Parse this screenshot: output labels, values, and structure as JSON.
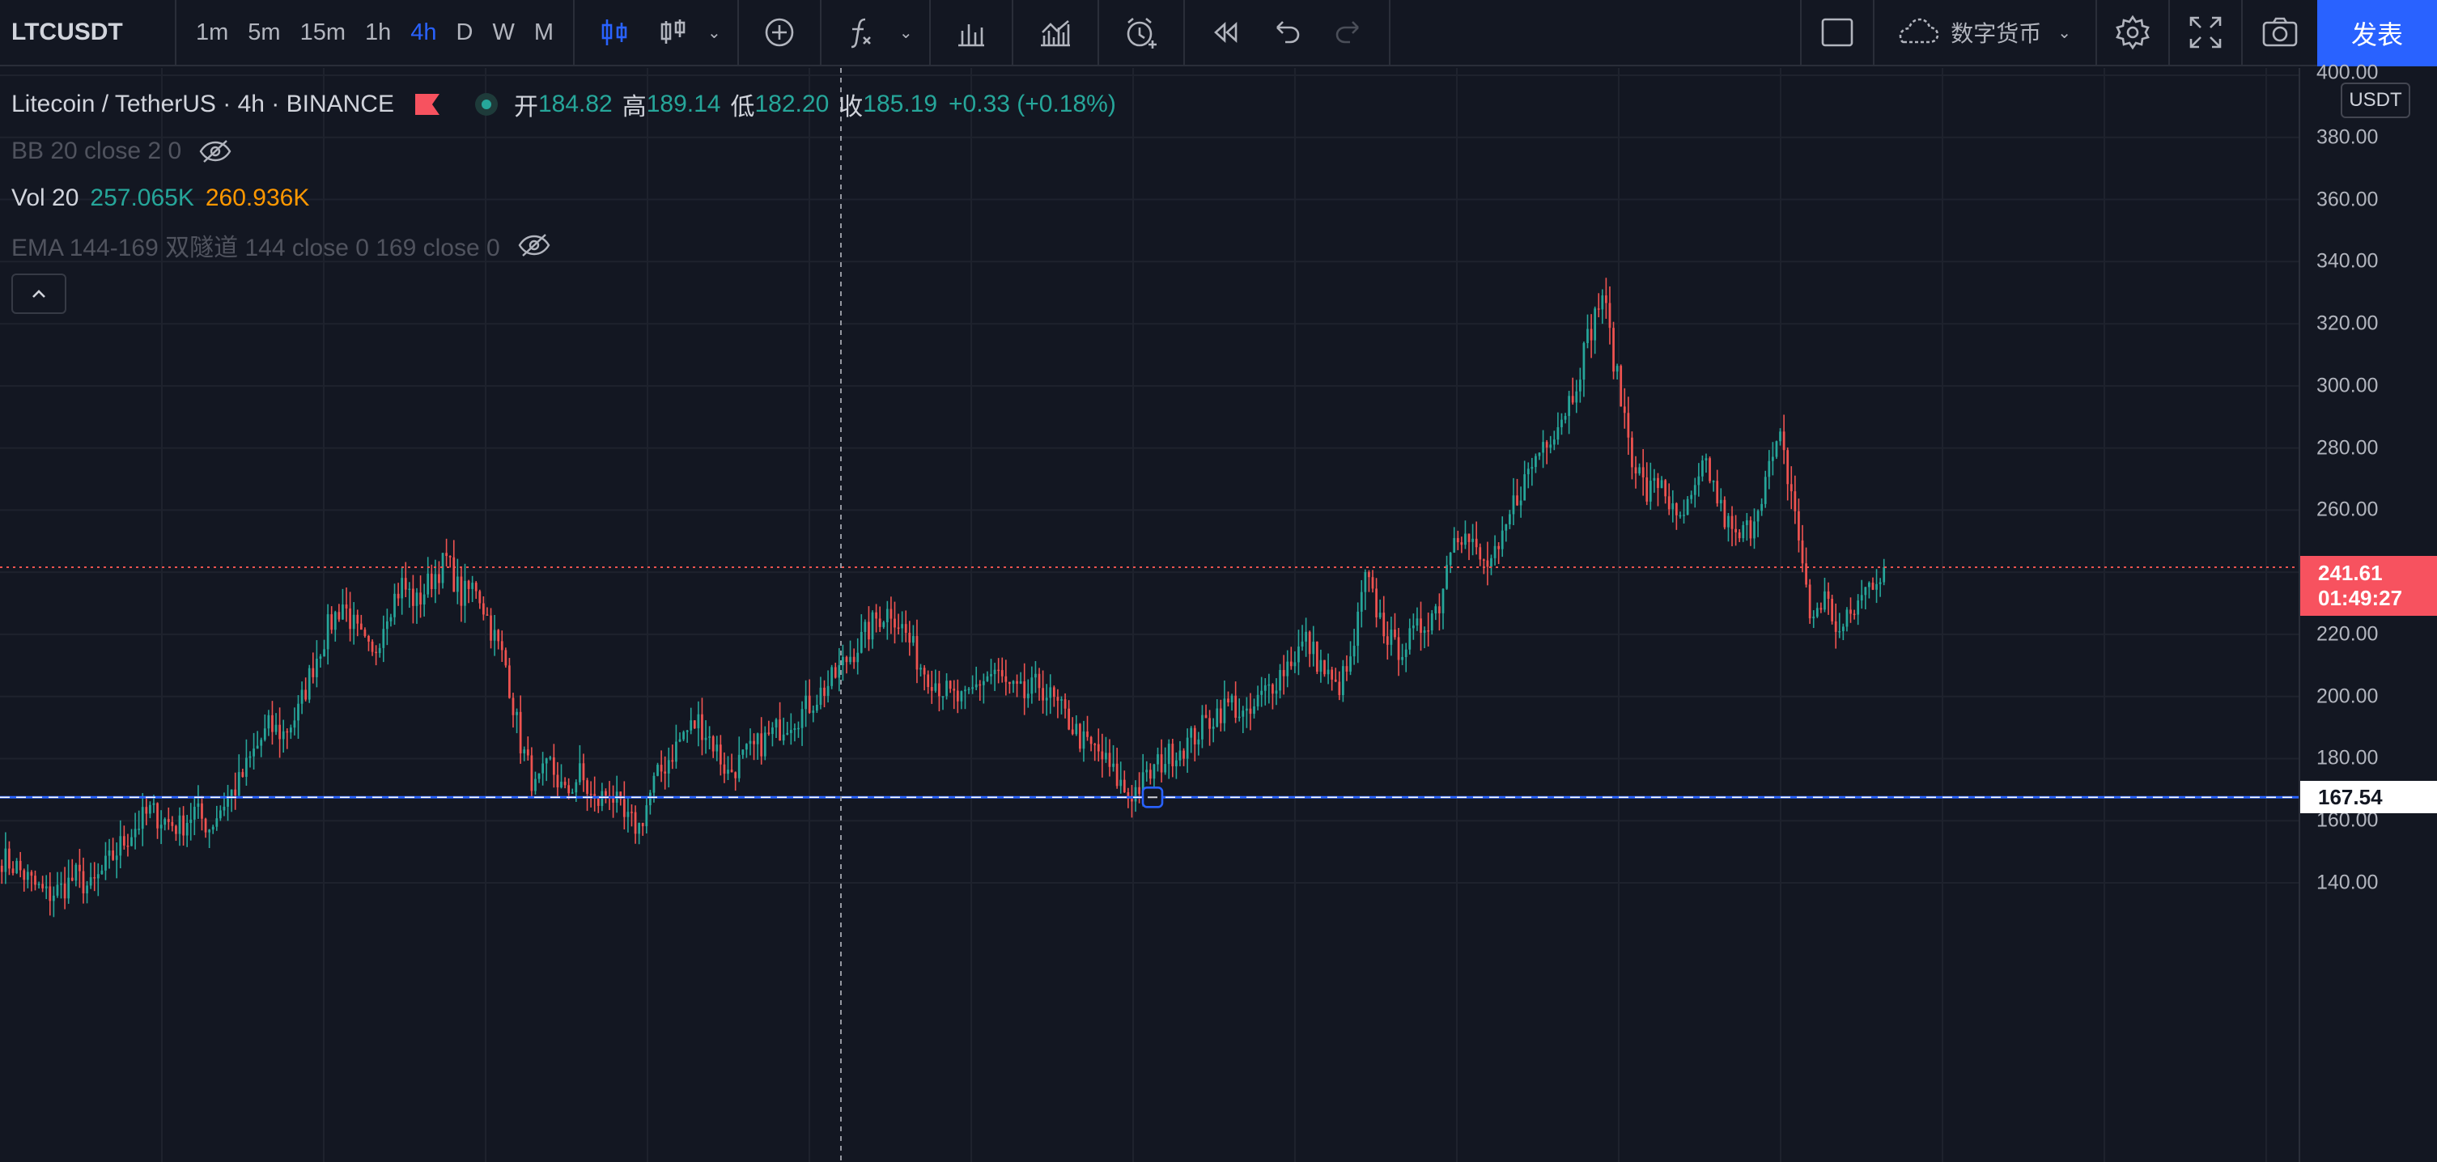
{
  "toolbar": {
    "symbol": "LTCUSDT",
    "intervals": [
      "1m",
      "5m",
      "15m",
      "1h",
      "4h",
      "D",
      "W",
      "M"
    ],
    "active_interval": "4h",
    "layout_label": "数字货币",
    "publish_label": "发表"
  },
  "legend": {
    "title": "Litecoin / TetherUS · 4h · BINANCE",
    "open_label": "开",
    "open": "184.82",
    "high_label": "高",
    "high": "189.14",
    "low_label": "低",
    "low": "182.20",
    "close_label": "收",
    "close": "185.19",
    "change": "+0.33 (+0.18%)",
    "bb": "BB 20 close 2 0",
    "vol_label": "Vol 20",
    "vol_1": "257.065K",
    "vol_2": "260.936K",
    "ema": "EMA 144-169 双隧道 144 close 0 169 close 0"
  },
  "price_scale": {
    "unit": "USDT",
    "ticks": [
      "400.00",
      "380.00",
      "360.00",
      "340.00",
      "320.00",
      "300.00",
      "280.00",
      "260.00",
      "240.00",
      "220.00",
      "200.00",
      "180.00",
      "160.00",
      "140.00"
    ],
    "last_price": "241.61",
    "countdown": "01:49:27",
    "horizontal_line_price": "167.54"
  },
  "colors": {
    "up": "#26a69a",
    "down": "#ef5350",
    "background": "#131722",
    "grid": "#1e222d",
    "accent": "#2962ff",
    "hline": "#2962ff"
  },
  "chart_data": {
    "type": "candlestick",
    "symbol": "LTCUSDT",
    "timeframe": "4h",
    "ylim": [
      130,
      402
    ],
    "last_price": 241.61,
    "horizontal_line": 167.54,
    "close_path": [
      148,
      145,
      140,
      136,
      138,
      142,
      138,
      145,
      152,
      158,
      163,
      160,
      158,
      163,
      158,
      166,
      172,
      182,
      190,
      188,
      195,
      210,
      222,
      230,
      220,
      212,
      228,
      236,
      230,
      238,
      244,
      232,
      236,
      222,
      210,
      185,
      170,
      178,
      168,
      175,
      165,
      170,
      160,
      158,
      172,
      180,
      188,
      192,
      185,
      175,
      180,
      184,
      188,
      192,
      195,
      200,
      205,
      212,
      218,
      225,
      228,
      220,
      210,
      205,
      200,
      198,
      205,
      208,
      202,
      200,
      204,
      198,
      192,
      185,
      182,
      175,
      168,
      172,
      178,
      182,
      185,
      190,
      195,
      198,
      192,
      200,
      206,
      212,
      218,
      210,
      202,
      210,
      238,
      225,
      215,
      218,
      224,
      230,
      255,
      250,
      242,
      245,
      262,
      272,
      282,
      288,
      298,
      315,
      330,
      302,
      278,
      265,
      270,
      255,
      262,
      275,
      260,
      250,
      255,
      270,
      282,
      260,
      225,
      232,
      220,
      228,
      236,
      241.61
    ]
  }
}
